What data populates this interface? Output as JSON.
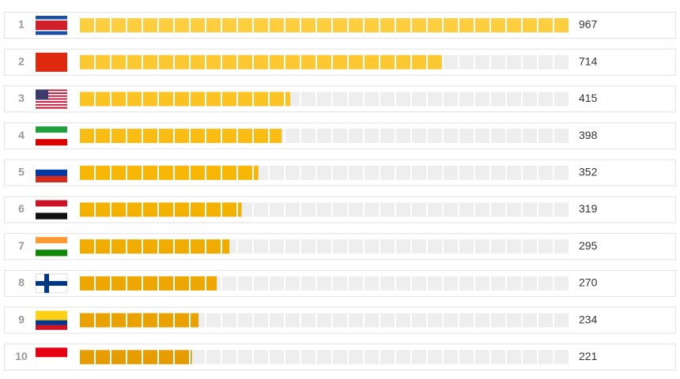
{
  "chart_data": {
    "type": "bar",
    "categories": [
      "1",
      "2",
      "3",
      "4",
      "5",
      "6",
      "7",
      "8",
      "9",
      "10"
    ],
    "values": [
      967,
      714,
      415,
      398,
      352,
      319,
      295,
      270,
      234,
      221
    ],
    "color": "#f5b000"
  }
}
